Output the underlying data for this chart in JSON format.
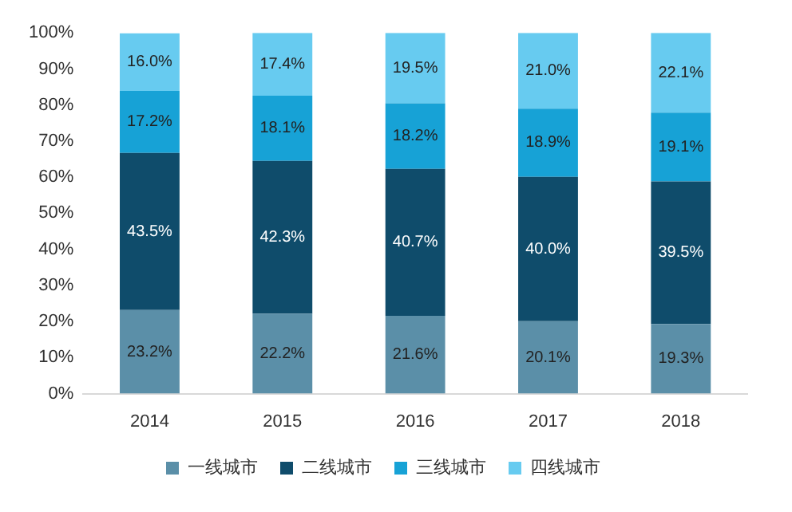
{
  "chart_data": {
    "type": "bar",
    "stacked": true,
    "categories": [
      "2014",
      "2015",
      "2016",
      "2017",
      "2018"
    ],
    "series": [
      {
        "name": "一线城市",
        "color": "#5b8fa8",
        "values": [
          23.2,
          22.2,
          21.6,
          20.1,
          19.3
        ],
        "value_labels": [
          "23.2%",
          "22.2%",
          "21.6%",
          "20.1%",
          "19.3%"
        ]
      },
      {
        "name": "二线城市",
        "color": "#0f4c6b",
        "values": [
          43.5,
          42.3,
          40.7,
          40.0,
          39.5
        ],
        "value_labels": [
          "43.5%",
          "42.3%",
          "40.7%",
          "40.0%",
          "39.5%"
        ]
      },
      {
        "name": "三线城市",
        "color": "#17a2d6",
        "values": [
          17.2,
          18.1,
          18.2,
          18.9,
          19.1
        ],
        "value_labels": [
          "17.2%",
          "18.1%",
          "18.2%",
          "18.9%",
          "19.1%"
        ]
      },
      {
        "name": "四线城市",
        "color": "#67cbf0",
        "values": [
          16.0,
          17.4,
          19.5,
          21.0,
          22.1
        ],
        "value_labels": [
          "16.0%",
          "17.4%",
          "19.5%",
          "21.0%",
          "22.1%"
        ]
      }
    ],
    "ylim": [
      0,
      100
    ],
    "yticks": [
      {
        "value": 0,
        "label": "0%"
      },
      {
        "value": 10,
        "label": "10%"
      },
      {
        "value": 20,
        "label": "20%"
      },
      {
        "value": 30,
        "label": "30%"
      },
      {
        "value": 40,
        "label": "40%"
      },
      {
        "value": 50,
        "label": "50%"
      },
      {
        "value": 60,
        "label": "60%"
      },
      {
        "value": 70,
        "label": "70%"
      },
      {
        "value": 80,
        "label": "80%"
      },
      {
        "value": 90,
        "label": "90%"
      },
      {
        "value": 100,
        "label": "100%"
      }
    ],
    "grid": false,
    "legend": "bottom"
  }
}
